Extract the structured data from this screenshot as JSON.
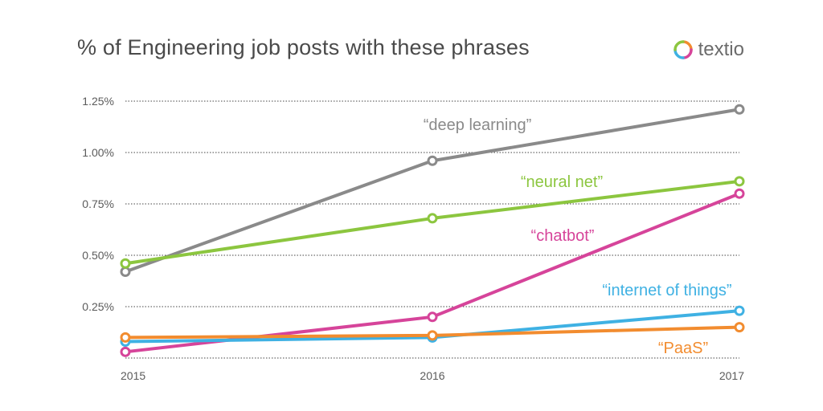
{
  "brand": {
    "name": "textio"
  },
  "chart_data": {
    "type": "line",
    "title": "% of Engineering job posts with these phrases",
    "x": [
      "2015",
      "2016",
      "2017"
    ],
    "ylim": [
      0,
      1.25
    ],
    "yticks": [
      "0.25%",
      "0.50%",
      "0.75%",
      "1.00%",
      "1.25%"
    ],
    "ytick_values": [
      0.25,
      0.5,
      0.75,
      1.0,
      1.25
    ],
    "grid": true,
    "series": [
      {
        "name": "“deep learning”",
        "color": "#8a8a8a",
        "values": [
          0.42,
          0.96,
          1.21
        ]
      },
      {
        "name": "“neural net”",
        "color": "#8cc63f",
        "values": [
          0.46,
          0.68,
          0.86
        ]
      },
      {
        "name": "“chatbot”",
        "color": "#d6449a",
        "values": [
          0.03,
          0.2,
          0.8
        ]
      },
      {
        "name": "“internet of things”",
        "color": "#3fb1e3",
        "values": [
          0.08,
          0.1,
          0.23
        ]
      },
      {
        "name": "“PaaS”",
        "color": "#f28c2f",
        "values": [
          0.1,
          0.11,
          0.15
        ]
      }
    ]
  }
}
